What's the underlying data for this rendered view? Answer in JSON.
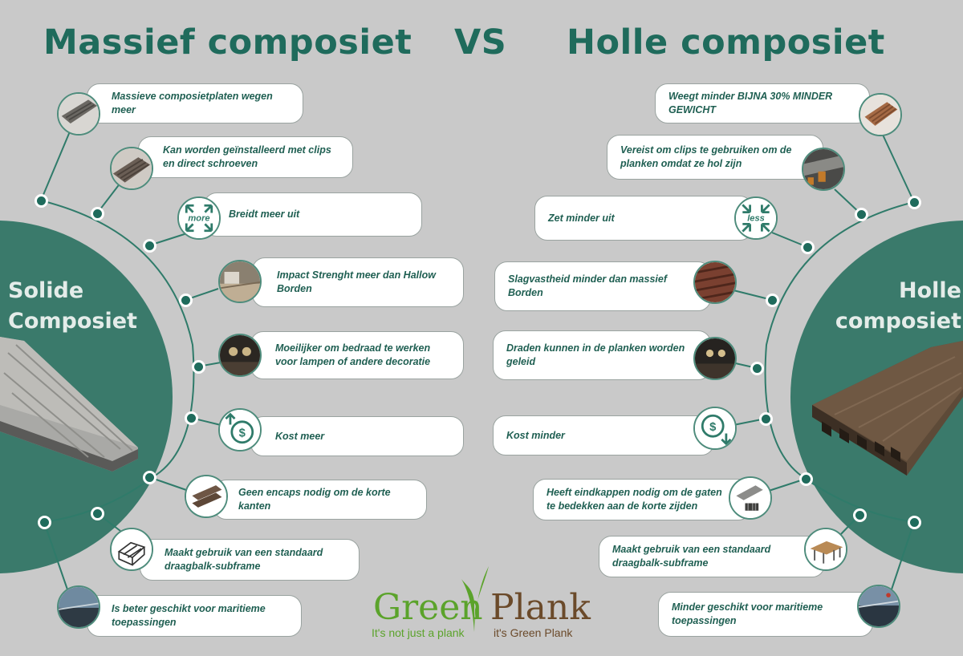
{
  "header": {
    "left_title": "Massief composiet",
    "vs": "VS",
    "right_title": "Holle composiet"
  },
  "left_circle": {
    "line1": "Solide",
    "line2": "Composiet"
  },
  "right_circle": {
    "line1": "Holle",
    "line2": "composiet"
  },
  "left_items": [
    {
      "text": "Massieve composietplaten wegen meer",
      "icon": "composite-board-photo"
    },
    {
      "text": "Kan worden geïnstalleerd met clips en direct schroeven",
      "icon": "board-installation-photo"
    },
    {
      "text": "Breidt meer uit",
      "icon": "expand-more-icon",
      "icon_text": "more"
    },
    {
      "text": "Impact Strenght meer dan Hallow Borden",
      "icon": "deck-impact-photo"
    },
    {
      "text": "Moeilijker om bedraad te werken voor lampen of andere decoratie",
      "icon": "deck-lights-photo"
    },
    {
      "text": "Kost meer",
      "icon": "cost-up-icon"
    },
    {
      "text": "Geen encaps nodig om de korte kanten",
      "icon": "board-ends-photo"
    },
    {
      "text": "Maakt gebruik van een standaard draagbalk-subframe",
      "icon": "subframe-icon"
    },
    {
      "text": "Is beter geschikt voor maritieme toepassingen",
      "icon": "marine-deck-photo"
    }
  ],
  "right_items": [
    {
      "text": "Weegt minder BIJNA 30% MINDER GEWICHT",
      "icon": "hollow-board-photo"
    },
    {
      "text": "Vereist om clips te gebruiken om de planken omdat ze hol zijn",
      "icon": "clips-installation-photo"
    },
    {
      "text": "Zet minder uit",
      "icon": "expand-less-icon",
      "icon_text": "less"
    },
    {
      "text": "Slagvastheid minder dan massief Borden",
      "icon": "hollow-deck-photo"
    },
    {
      "text": "Draden kunnen in de planken worden geleid",
      "icon": "deck-lights-photo"
    },
    {
      "text": "Kost minder",
      "icon": "cost-down-icon"
    },
    {
      "text": "Heeft eindkappen nodig om de gaten te bedekken aan de korte zijden",
      "icon": "end-caps-photo"
    },
    {
      "text": "Maakt gebruik van een standaard draagbalk-subframe",
      "icon": "subframe-photo"
    },
    {
      "text": "Minder geschikt voor maritieme toepassingen",
      "icon": "marine-deck-photo"
    }
  ],
  "logo": {
    "word1": "Green",
    "word2": "Plank",
    "tagline_left": "It's not just a plank",
    "tagline_right": "it's Green Plank"
  },
  "colors": {
    "background": "#c9c9c9",
    "accent": "#1f6b5c",
    "circle": "#3a7a6b",
    "logo_green": "#5ba32b",
    "logo_brown": "#6b4a2a"
  }
}
